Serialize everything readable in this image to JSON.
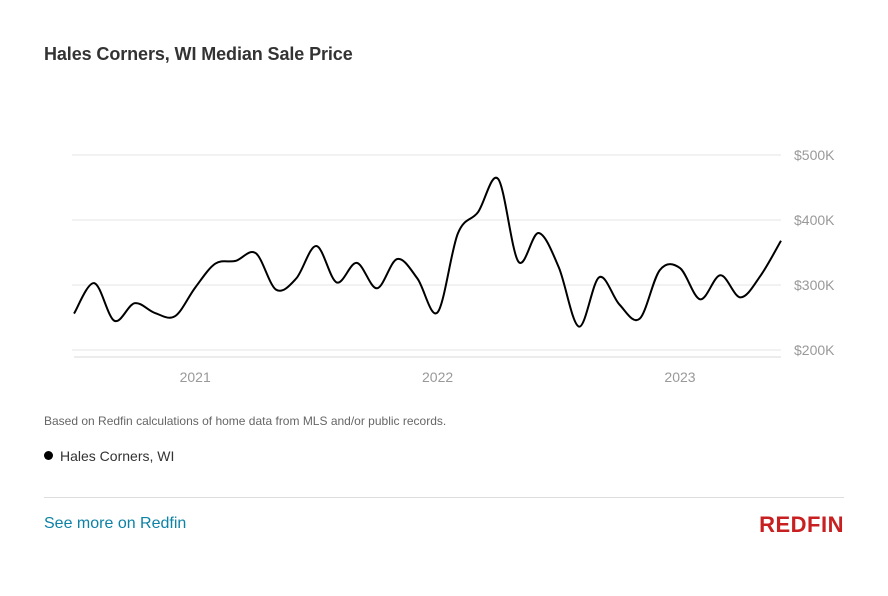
{
  "title": "Hales Corners, WI Median Sale Price",
  "note": "Based on Redfin calculations of home data from MLS and/or public records.",
  "legend": {
    "label": "Hales Corners, WI",
    "color": "#000000"
  },
  "footer": {
    "link_label": "See more on Redfin",
    "logo_text": "REDFIN",
    "link_color": "#0c82a6",
    "logo_color": "#c82021"
  },
  "chart_data": {
    "type": "line",
    "title": "Hales Corners, WI Median Sale Price",
    "xlabel": "",
    "ylabel": "",
    "y_ticks": [
      200000,
      300000,
      400000,
      500000
    ],
    "y_tick_labels": [
      "$200K",
      "$300K",
      "$400K",
      "$500K"
    ],
    "x_ticks": [
      {
        "label": "2021",
        "date": "2021-01"
      },
      {
        "label": "2022",
        "date": "2022-01"
      },
      {
        "label": "2023",
        "date": "2023-01"
      }
    ],
    "ylim": [
      200000,
      500000
    ],
    "xlim": [
      "2020-07",
      "2023-06"
    ],
    "grid": true,
    "series": [
      {
        "name": "Hales Corners, WI",
        "color": "#000000",
        "x": [
          "2020-07",
          "2020-08",
          "2020-09",
          "2020-10",
          "2020-11",
          "2020-12",
          "2021-01",
          "2021-02",
          "2021-03",
          "2021-04",
          "2021-05",
          "2021-06",
          "2021-07",
          "2021-08",
          "2021-09",
          "2021-10",
          "2021-11",
          "2021-12",
          "2022-01",
          "2022-02",
          "2022-03",
          "2022-04",
          "2022-05",
          "2022-06",
          "2022-07",
          "2022-08",
          "2022-09",
          "2022-10",
          "2022-11",
          "2022-12",
          "2023-01",
          "2023-02",
          "2023-03",
          "2023-04",
          "2023-05",
          "2023-06"
        ],
        "values": [
          256000,
          303000,
          245000,
          272000,
          257000,
          252000,
          296000,
          333000,
          337000,
          349000,
          293000,
          310000,
          360000,
          304000,
          334000,
          295000,
          340000,
          310000,
          258000,
          379000,
          412000,
          463000,
          336000,
          380000,
          327000,
          236000,
          312000,
          270000,
          248000,
          323000,
          326000,
          278000,
          315000,
          281000,
          315000,
          368000
        ]
      }
    ]
  }
}
